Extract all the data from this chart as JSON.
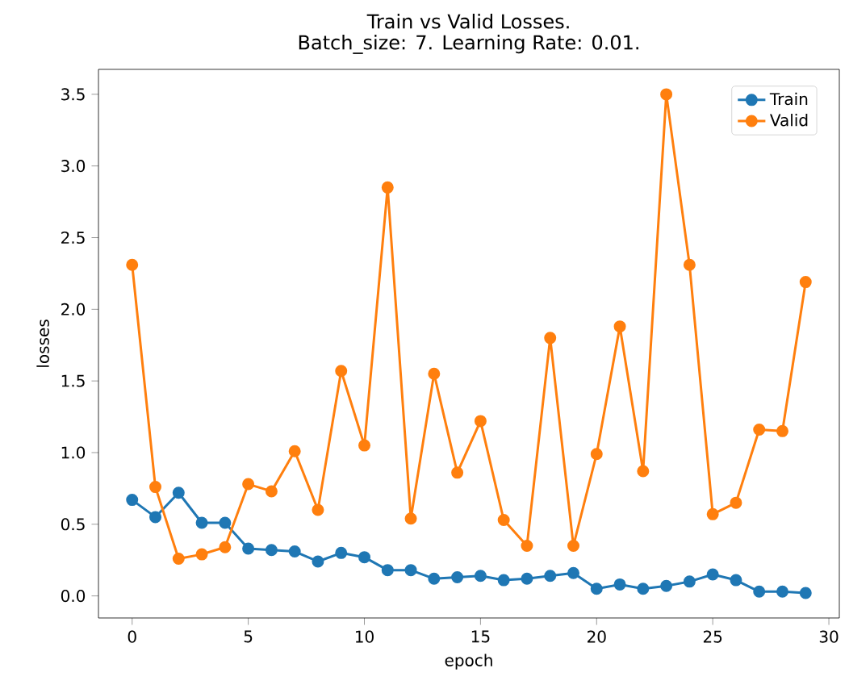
{
  "chart_data": {
    "type": "line",
    "title": "Train vs Valid Losses.",
    "subtitle": "Batch_size: 7. Learning Rate: 0.01.",
    "xlabel": "epoch",
    "ylabel": "losses",
    "x": [
      0,
      1,
      2,
      3,
      4,
      5,
      6,
      7,
      8,
      9,
      10,
      11,
      12,
      13,
      14,
      15,
      16,
      17,
      18,
      19,
      20,
      21,
      22,
      23,
      24,
      25,
      26,
      27,
      28,
      29
    ],
    "series": [
      {
        "name": "Train",
        "color": "#1f77b4",
        "values": [
          0.67,
          0.55,
          0.72,
          0.51,
          0.51,
          0.33,
          0.32,
          0.31,
          0.24,
          0.3,
          0.27,
          0.18,
          0.18,
          0.12,
          0.13,
          0.14,
          0.11,
          0.12,
          0.14,
          0.16,
          0.05,
          0.08,
          0.05,
          0.07,
          0.1,
          0.15,
          0.11,
          0.03,
          0.03,
          0.02
        ]
      },
      {
        "name": "Valid",
        "color": "#ff7f0e",
        "values": [
          2.31,
          0.76,
          0.26,
          0.29,
          0.34,
          0.78,
          0.73,
          1.01,
          0.6,
          1.57,
          1.05,
          2.85,
          0.54,
          1.55,
          0.86,
          1.22,
          0.53,
          0.35,
          1.8,
          0.35,
          0.99,
          1.88,
          0.87,
          3.5,
          2.31,
          0.57,
          0.65,
          1.16,
          1.15,
          2.19
        ]
      }
    ],
    "xlim": [
      -1.45,
      30.45
    ],
    "ylim": [
      -0.154,
      3.674
    ],
    "xticks": [
      0,
      5,
      10,
      15,
      20,
      25,
      30
    ],
    "yticks": [
      {
        "value": 0,
        "label": "0.0"
      },
      0.5,
      {
        "value": 1,
        "label": "1.0"
      },
      1.5,
      {
        "value": 2,
        "label": "2.0"
      },
      2.5,
      {
        "value": 3,
        "label": "3.0"
      },
      3.5
    ],
    "marker": "circle",
    "line_style": "solid",
    "legend": "top right",
    "grid": false
  }
}
